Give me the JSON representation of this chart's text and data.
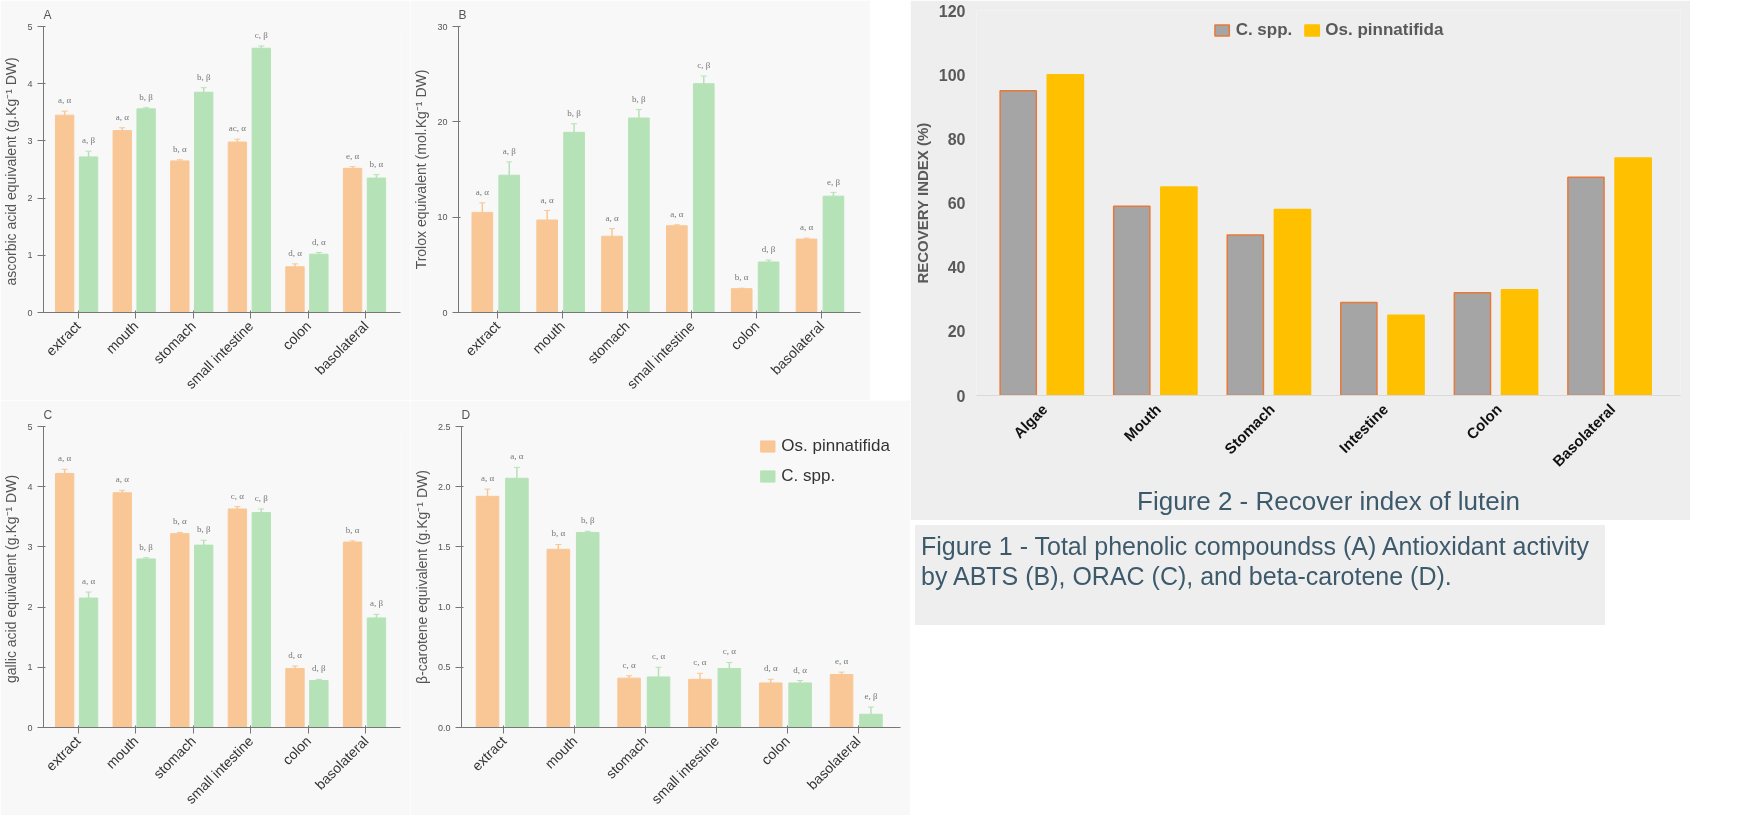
{
  "chart_data": [
    {
      "type": "bar",
      "title": "A",
      "ylabel": "ascorbic acid  equivalent (g.Kg⁻¹ DW)",
      "categories": [
        "extract",
        "mouth",
        "stomach",
        "small intestine",
        "colon",
        "basolateral"
      ],
      "ylim": [
        0,
        5
      ],
      "yticks": [
        0,
        1,
        2,
        3,
        4,
        5
      ],
      "series": [
        {
          "color": "#f9c796",
          "values": [
            3.45,
            3.18,
            2.65,
            2.98,
            0.8,
            2.52
          ],
          "errors": [
            0.07,
            0.05,
            0.02,
            0.05,
            0.05,
            0.03
          ],
          "value_labels": [
            "a, α",
            "a, α",
            "b, α",
            "ac, α",
            "d, α",
            "e, α"
          ]
        },
        {
          "color": "#b6e2b8",
          "values": [
            2.72,
            3.56,
            3.85,
            4.62,
            1.02,
            2.35
          ],
          "errors": [
            0.1,
            0.02,
            0.08,
            0.04,
            0.03,
            0.06
          ],
          "value_labels": [
            "a, β",
            "b, β",
            "b, β",
            "c, β",
            "d, α",
            "b, α"
          ]
        }
      ]
    },
    {
      "type": "bar",
      "title": "B",
      "ylabel": "Trolox equivalent (mol.Kg⁻¹ DW)",
      "categories": [
        "extract",
        "mouth",
        "stomach",
        "small intestine",
        "colon",
        "basolateral"
      ],
      "ylim": [
        0,
        30
      ],
      "yticks": [
        0,
        10,
        20,
        30
      ],
      "series": [
        {
          "color": "#f9c796",
          "values": [
            10.5,
            9.7,
            8.0,
            9.1,
            2.5,
            7.7
          ],
          "errors": [
            1.0,
            1.0,
            0.8,
            0.1,
            0.05,
            0.1
          ],
          "value_labels": [
            "a, α",
            "a, α",
            "a, α",
            "a, α",
            "b, α",
            "a, α"
          ]
        },
        {
          "color": "#b6e2b8",
          "values": [
            14.4,
            18.9,
            20.4,
            24.0,
            5.3,
            12.2
          ],
          "errors": [
            1.4,
            0.9,
            0.9,
            0.8,
            0.2,
            0.4
          ],
          "value_labels": [
            "a, β",
            "b, β",
            "b, β",
            "c, β",
            "d, β",
            "e, β"
          ]
        }
      ]
    },
    {
      "type": "bar",
      "title": "C",
      "ylabel": "gallic acid  equivalent (g.Kg⁻¹ DW)",
      "categories": [
        "extract",
        "mouth",
        "stomach",
        "small intestine",
        "colon",
        "basolateral"
      ],
      "ylim": [
        0,
        5
      ],
      "yticks": [
        0,
        1,
        2,
        3,
        4,
        5
      ],
      "series": [
        {
          "color": "#f9c796",
          "values": [
            4.22,
            3.9,
            3.22,
            3.63,
            0.98,
            3.08
          ],
          "errors": [
            0.07,
            0.04,
            0.02,
            0.04,
            0.04,
            0.02
          ],
          "value_labels": [
            "a, α",
            "a, α",
            "b, α",
            "c, α",
            "d, α",
            "b, α"
          ]
        },
        {
          "color": "#b6e2b8",
          "values": [
            2.15,
            2.8,
            3.03,
            3.57,
            0.78,
            1.82
          ],
          "errors": [
            0.1,
            0.02,
            0.08,
            0.06,
            0.02,
            0.06
          ],
          "value_labels": [
            "a, α",
            "b, β",
            "b, β",
            "c, β",
            "d, β",
            "a, β"
          ]
        }
      ]
    },
    {
      "type": "bar",
      "title": "D",
      "ylabel": "β-carotene equivalent (g.Kg⁻¹ DW)",
      "categories": [
        "extract",
        "mouth",
        "stomach",
        "small intestine",
        "colon",
        "basolateral"
      ],
      "ylim": [
        0,
        2.5
      ],
      "yticks": [
        {
          "value": 0,
          "label": "0.0"
        },
        {
          "value": 0.5,
          "label": "0.5"
        },
        {
          "value": 1,
          "label": "1.0"
        },
        {
          "value": 1.5,
          "label": "1.5"
        },
        {
          "value": 2,
          "label": "2.0"
        },
        {
          "value": 2.5,
          "label": "2.5"
        }
      ],
      "legend": "right",
      "annotations": [
        "Figure 1 - Total phenolic compoundss (A) Antioxidant activity by ABTS (B), ORAC (C), and beta-carotene (D)."
      ],
      "series": [
        {
          "name": "Os. pinnatifida",
          "color": "#f9c796",
          "values": [
            1.92,
            1.48,
            0.41,
            0.4,
            0.37,
            0.44
          ],
          "errors": [
            0.06,
            0.04,
            0.02,
            0.05,
            0.03,
            0.02
          ],
          "value_labels": [
            "a, α",
            "b, α",
            "c, α",
            "c, α",
            "d, α",
            "e, α"
          ]
        },
        {
          "name": "C. spp.",
          "color": "#b6e2b8",
          "values": [
            2.07,
            1.62,
            0.42,
            0.49,
            0.37,
            0.11
          ],
          "errors": [
            0.09,
            0.01,
            0.08,
            0.05,
            0.02,
            0.06
          ],
          "value_labels": [
            "a, α",
            "b, β",
            "c, α",
            "c, α",
            "d, α",
            "e, β"
          ]
        }
      ]
    },
    {
      "type": "bar",
      "ylabel": "RECOVERY INDEX (%)",
      "categories": [
        "Algae",
        "Mouth",
        "Stomach",
        "Intestine",
        "Colon",
        "Basolateral"
      ],
      "ylim": [
        0,
        120
      ],
      "yticks": [
        0,
        20,
        40,
        60,
        80,
        100,
        120
      ],
      "legend": "top",
      "annotations": [
        "Figure 2 - Recover index of lutein"
      ],
      "series": [
        {
          "name": "C. spp.",
          "color": "#a5a5a5",
          "values": [
            95,
            59,
            50,
            29,
            32,
            68
          ]
        },
        {
          "name": "Os. pinnatifida",
          "color": "#ffc000",
          "values": [
            100,
            65,
            58,
            25,
            33,
            74
          ]
        }
      ]
    }
  ]
}
